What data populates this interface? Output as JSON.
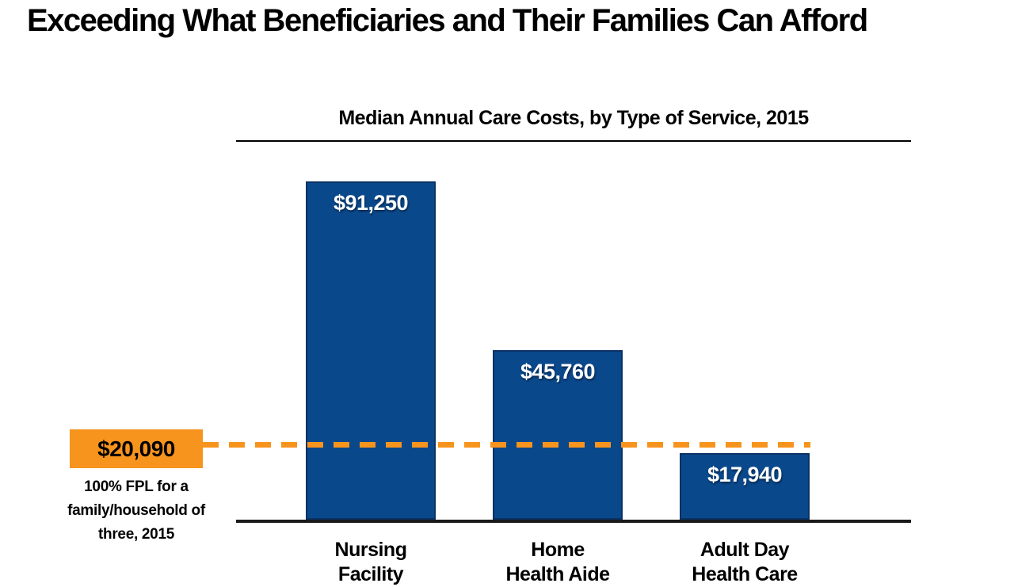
{
  "slide": {
    "title": "Exceeding What Beneficiaries and Their Families Can Afford"
  },
  "chart_data": {
    "type": "bar",
    "title": "Median Annual Care Costs, by Type of Service, 2015",
    "categories": [
      "Nursing Facility",
      "Home Health Aide",
      "Adult Day Health Care"
    ],
    "values": [
      91250,
      45760,
      17940
    ],
    "bar_value_labels": [
      "$91,250",
      "$45,760",
      "$17,940"
    ],
    "bar_color": "#0A488C",
    "bar_border_color": "#0A3263",
    "ylim": [
      0,
      91250
    ],
    "grid": "off",
    "reference_line": {
      "value": 20090,
      "label": "$20,090",
      "caption": "100% FPL for a family/household of three, 2015",
      "color": "#F7941D",
      "style": "dashed"
    }
  },
  "bars": [
    {
      "value_label": "$91,250",
      "cat_line1": "Nursing",
      "cat_line2": "Facility"
    },
    {
      "value_label": "$45,760",
      "cat_line1": "Home",
      "cat_line2": "Health Aide"
    },
    {
      "value_label": "$17,940",
      "cat_line1": "Adult Day",
      "cat_line2": "Health Care"
    }
  ]
}
